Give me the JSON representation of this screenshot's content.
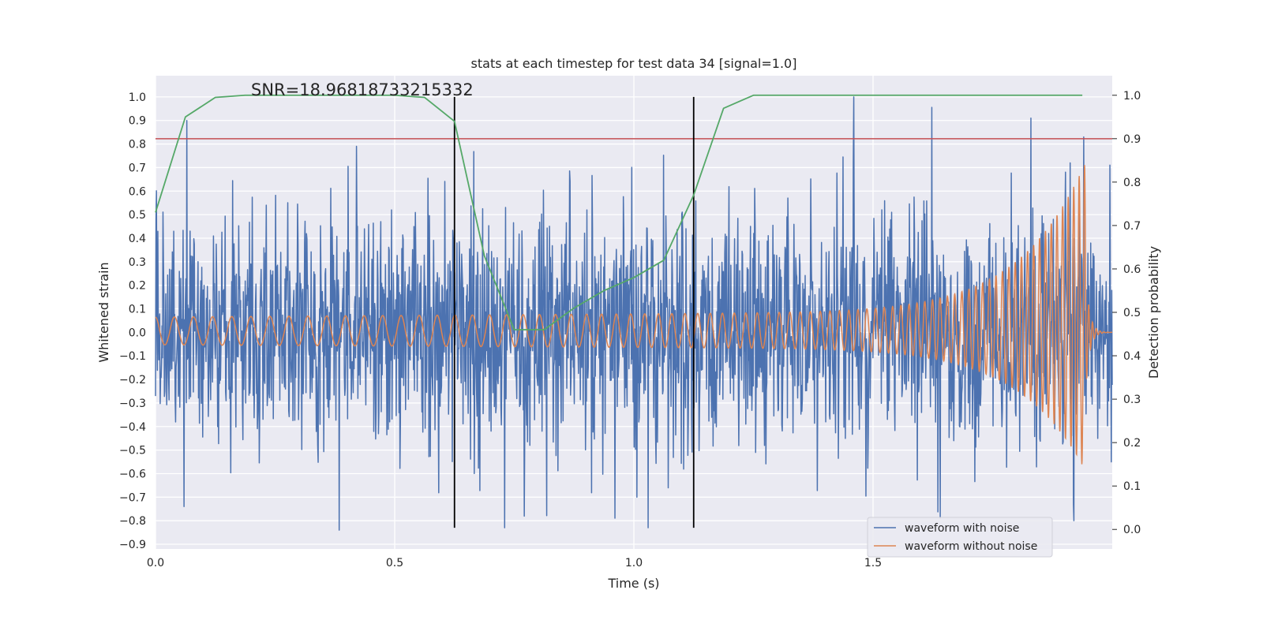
{
  "chart_data": {
    "type": "line",
    "title": "stats at each timestep for test data 34 [signal=1.0]",
    "xlabel": "Time (s)",
    "ylabel": "Whitened strain",
    "y2label": "Detection probability",
    "xlim": [
      0.0,
      2.0
    ],
    "ylim": [
      -0.92,
      1.09
    ],
    "y2lim": [
      -0.045,
      1.045
    ],
    "x_ticks": [
      0.0,
      0.5,
      1.0,
      1.5
    ],
    "x_tick_labels": [
      "0.0",
      "0.5",
      "1.0",
      "1.5"
    ],
    "y_ticks": [
      1.0,
      0.9,
      0.8,
      0.7,
      0.6,
      0.5,
      0.4,
      0.3,
      0.2,
      0.1,
      0.0,
      -0.1,
      -0.2,
      -0.3,
      -0.4,
      -0.5,
      -0.6,
      -0.7,
      -0.8,
      -0.9
    ],
    "y_tick_labels": [
      "1.0",
      "0.9",
      "0.8",
      "0.7",
      "0.6",
      "0.5",
      "0.4",
      "0.3",
      "0.2",
      "0.1",
      "0.0",
      "−0.1",
      "−0.2",
      "−0.3",
      "−0.4",
      "−0.5",
      "−0.6",
      "−0.7",
      "−0.8",
      "−0.9"
    ],
    "y2_ticks": [
      1.0,
      0.9,
      0.8,
      0.7,
      0.6,
      0.5,
      0.4,
      0.3,
      0.2,
      0.1,
      0.0
    ],
    "y2_tick_labels": [
      "1.0",
      "0.9",
      "0.8",
      "0.7",
      "0.6",
      "0.5",
      "0.4",
      "0.3",
      "0.2",
      "0.1",
      "0.0"
    ],
    "grid": true,
    "annotation": "SNR=18.96818733215332",
    "legend_position": "lower-right",
    "series": [
      {
        "name": "waveform with noise",
        "axis": "left",
        "color": "#4c72b0",
        "kind": "noise",
        "x_range": [
          0.0,
          2.0
        ],
        "std": 0.25,
        "range": [
          -0.84,
          1.0
        ],
        "peaks": [
          [
            0.065,
            0.9
          ],
          [
            0.42,
            0.79
          ],
          [
            1.46,
            1.0
          ],
          [
            1.83,
            0.91
          ],
          [
            1.94,
            0.83
          ],
          [
            1.995,
            0.71
          ],
          [
            0.73,
            -0.83
          ],
          [
            1.03,
            -0.83
          ],
          [
            1.64,
            -0.79
          ],
          [
            1.92,
            -0.8
          ],
          [
            0.06,
            -0.74
          ]
        ]
      },
      {
        "name": "waveform without noise",
        "axis": "left",
        "color": "#dd8452",
        "kind": "chirp",
        "x_range": [
          0.0,
          2.0
        ],
        "amplitude_start": 0.065,
        "amplitude_peak": 0.7,
        "trough_peak": -0.57,
        "merger_time": 1.945,
        "frequency_start_hz": 25,
        "frequency_end_hz": 90
      },
      {
        "name": "detection probability",
        "axis": "right",
        "color": "#55a868",
        "kind": "line",
        "x": [
          0.0,
          0.0625,
          0.125,
          0.1875,
          0.25,
          0.3125,
          0.375,
          0.4375,
          0.5,
          0.5625,
          0.625,
          0.6875,
          0.75,
          0.8125,
          0.875,
          0.9375,
          1.0,
          1.0625,
          1.125,
          1.1875,
          1.25,
          1.3125,
          1.375,
          1.4375,
          1.5,
          1.5625,
          1.625,
          1.6875,
          1.75,
          1.8125,
          1.875,
          1.9375
        ],
        "y": [
          0.73,
          0.95,
          0.995,
          1.0,
          1.0,
          1.0,
          1.0,
          1.0,
          1.0,
          0.995,
          0.94,
          0.63,
          0.46,
          0.46,
          0.51,
          0.55,
          0.58,
          0.62,
          0.77,
          0.97,
          1.0,
          1.0,
          1.0,
          1.0,
          1.0,
          1.0,
          1.0,
          1.0,
          1.0,
          1.0,
          1.0,
          1.0
        ]
      }
    ],
    "threshold": {
      "axis": "right",
      "value": 0.9,
      "color": "#c44e52"
    },
    "vertical_markers": {
      "x": [
        0.625,
        1.125
      ],
      "ymin": -0.83,
      "ymax": 1.0,
      "color": "#000000"
    }
  }
}
